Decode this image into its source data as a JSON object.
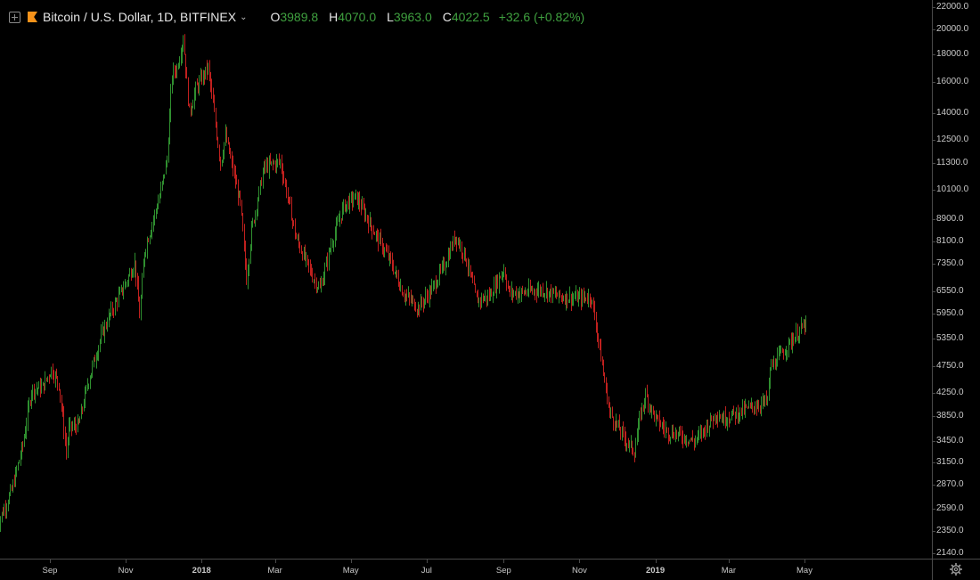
{
  "header": {
    "symbol_title": "Bitcoin / U.S. Dollar, 1D, BITFINEX",
    "open_key": "O",
    "open": "3989.8",
    "high_key": "H",
    "high": "4070.0",
    "low_key": "L",
    "low": "3963.0",
    "close_key": "C",
    "close": "4022.5",
    "change": "+32.6 (+0.82%)"
  },
  "colors": {
    "up": "#2f8f2f",
    "down": "#c0201e",
    "background": "#000000",
    "brand": "#f7931a"
  },
  "icons": {
    "chart_toggle": "plus-square-icon",
    "symbol": "bitcoin-flag-icon",
    "dropdown": "chevron-down-icon",
    "settings": "gear-icon"
  },
  "chart_data": {
    "type": "candlestick",
    "scale": "log",
    "ylim": [
      2140,
      22000
    ],
    "y_ticks": [
      "22000.0",
      "20000.0",
      "18000.0",
      "16000.0",
      "14000.0",
      "12500.0",
      "11300.0",
      "10100.0",
      "8900.0",
      "8100.0",
      "7350.0",
      "6550.0",
      "5950.0",
      "5350.0",
      "4750.0",
      "4250.0",
      "3850.0",
      "3450.0",
      "3150.0",
      "2870.0",
      "2590.0",
      "2350.0",
      "2140.0"
    ],
    "x_ticks": [
      {
        "label": "Sep",
        "date": "2017-09-01",
        "major": false
      },
      {
        "label": "Nov",
        "date": "2017-11-01",
        "major": false
      },
      {
        "label": "2018",
        "date": "2018-01-01",
        "major": true
      },
      {
        "label": "Mar",
        "date": "2018-03-01",
        "major": false
      },
      {
        "label": "May",
        "date": "2018-05-01",
        "major": false
      },
      {
        "label": "Jul",
        "date": "2018-07-01",
        "major": false
      },
      {
        "label": "Sep",
        "date": "2018-09-01",
        "major": false
      },
      {
        "label": "Nov",
        "date": "2018-11-01",
        "major": false
      },
      {
        "label": "2019",
        "date": "2019-01-01",
        "major": true
      },
      {
        "label": "Mar",
        "date": "2019-03-01",
        "major": false
      },
      {
        "label": "May",
        "date": "2019-05-01",
        "major": false
      }
    ],
    "close_path": [
      [
        "2017-07-20",
        2400
      ],
      [
        "2017-08-01",
        2800
      ],
      [
        "2017-08-10",
        3400
      ],
      [
        "2017-08-17",
        4300
      ],
      [
        "2017-08-26",
        4350
      ],
      [
        "2017-09-02",
        4700
      ],
      [
        "2017-09-08",
        4400
      ],
      [
        "2017-09-14",
        3300
      ],
      [
        "2017-09-16",
        3650
      ],
      [
        "2017-09-24",
        3700
      ],
      [
        "2017-10-01",
        4400
      ],
      [
        "2017-10-12",
        5400
      ],
      [
        "2017-10-20",
        6000
      ],
      [
        "2017-11-01",
        6800
      ],
      [
        "2017-11-08",
        7400
      ],
      [
        "2017-11-12",
        5900
      ],
      [
        "2017-11-16",
        7800
      ],
      [
        "2017-11-28",
        9800
      ],
      [
        "2017-12-04",
        11500
      ],
      [
        "2017-12-08",
        16500
      ],
      [
        "2017-12-12",
        17000
      ],
      [
        "2017-12-17",
        19300
      ],
      [
        "2017-12-22",
        14000
      ],
      [
        "2017-12-27",
        15500
      ],
      [
        "2018-01-06",
        17000
      ],
      [
        "2018-01-10",
        14500
      ],
      [
        "2018-01-16",
        11300
      ],
      [
        "2018-01-20",
        12700
      ],
      [
        "2018-02-01",
        9500
      ],
      [
        "2018-02-06",
        6900
      ],
      [
        "2018-02-10",
        8500
      ],
      [
        "2018-02-20",
        11100
      ],
      [
        "2018-03-05",
        11400
      ],
      [
        "2018-03-18",
        8200
      ],
      [
        "2018-04-01",
        6900
      ],
      [
        "2018-04-06",
        6600
      ],
      [
        "2018-04-15",
        8000
      ],
      [
        "2018-04-25",
        9400
      ],
      [
        "2018-05-05",
        9800
      ],
      [
        "2018-05-20",
        8400
      ],
      [
        "2018-06-01",
        7500
      ],
      [
        "2018-06-12",
        6500
      ],
      [
        "2018-06-24",
        6100
      ],
      [
        "2018-07-05",
        6600
      ],
      [
        "2018-07-16",
        7400
      ],
      [
        "2018-07-24",
        8300
      ],
      [
        "2018-08-01",
        7600
      ],
      [
        "2018-08-10",
        6300
      ],
      [
        "2018-08-20",
        6400
      ],
      [
        "2018-09-01",
        7200
      ],
      [
        "2018-09-05",
        6500
      ],
      [
        "2018-09-15",
        6500
      ],
      [
        "2018-10-01",
        6600
      ],
      [
        "2018-10-15",
        6400
      ],
      [
        "2018-11-01",
        6350
      ],
      [
        "2018-11-10",
        6400
      ],
      [
        "2018-11-14",
        5700
      ],
      [
        "2018-11-20",
        4600
      ],
      [
        "2018-11-25",
        3900
      ],
      [
        "2018-12-07",
        3500
      ],
      [
        "2018-12-15",
        3300
      ],
      [
        "2018-12-20",
        3900
      ],
      [
        "2018-12-24",
        4200
      ],
      [
        "2019-01-01",
        3800
      ],
      [
        "2019-01-10",
        3600
      ],
      [
        "2019-01-20",
        3550
      ],
      [
        "2019-02-01",
        3450
      ],
      [
        "2019-02-08",
        3600
      ],
      [
        "2019-02-19",
        3900
      ],
      [
        "2019-02-24",
        3800
      ],
      [
        "2019-03-20",
        4000
      ],
      [
        "2019-04-01",
        4100
      ],
      [
        "2019-04-03",
        4700
      ],
      [
        "2019-04-23",
        5400
      ],
      [
        "2019-05-02",
        5700
      ]
    ]
  }
}
